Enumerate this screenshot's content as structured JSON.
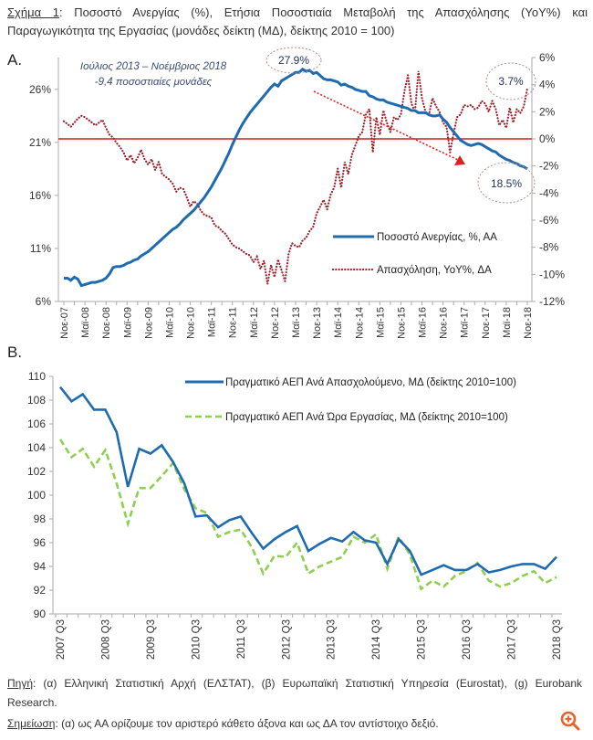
{
  "title": {
    "label": "Σχήμα 1",
    "text": ": Ποσοστό Ανεργίας (%), Ετήσια Ποσοστιαία Μεταβολή της Απασχόλησης (YoY%) και Παραγωγικότητα της Εργασίας (μονάδες δείκτη (ΜΔ), δείκτης 2010 = 100)"
  },
  "section_a": "A.",
  "section_b": "B.",
  "footer": {
    "source_label": "Πηγή",
    "source_text": ": (α) Ελληνική Στατιστική Αρχή (ΕΛΣΤΑΤ), (β) Ευρωπαϊκή Στατιστική Υπηρεσία (Eurostat), (g) Eurobank Research.",
    "note_label": "Σημείωση",
    "note_text": ": (α) ως ΑΑ ορίζουμε τον αριστερό κάθετο άξονα και ως ΔΑ τον αντίστοιχο δεξιό."
  },
  "colors": {
    "unemployment": "#1f6bb0",
    "employment": "#a0202a",
    "zero_line": "#c8201e",
    "productivity_employed": "#1f6bb0",
    "productivity_hour": "#8fcf4f",
    "annotation_ellipse": "#b58b85",
    "zoom_icon": "#e8632b"
  },
  "zoom_icon": "zoom-in-icon",
  "chart_data": [
    {
      "type": "line",
      "left_ylim": [
        6,
        29
      ],
      "right_ylim": [
        -12,
        6
      ],
      "left_ticks": [
        "6%",
        "11%",
        "16%",
        "21%",
        "26%"
      ],
      "left_tick_values": [
        6,
        11,
        16,
        21,
        26
      ],
      "right_ticks": [
        "-12%",
        "-10%",
        "-8%",
        "-6%",
        "-4%",
        "-2%",
        "0%",
        "2%",
        "4%",
        "6%"
      ],
      "right_tick_values": [
        -12,
        -10,
        -8,
        -6,
        -4,
        -2,
        0,
        2,
        4,
        6
      ],
      "x_tick_labels": [
        "Νοε-07",
        "Μαϊ-08",
        "Νοε-08",
        "Μαϊ-09",
        "Νοε-09",
        "Μαϊ-10",
        "Νοε-10",
        "Μαϊ-11",
        "Νοε-11",
        "Μαϊ-12",
        "Νοε-12",
        "Μαϊ-13",
        "Νοε-13",
        "Μαϊ-14",
        "Νοε-14",
        "Μαϊ-15",
        "Νοε-15",
        "Μαϊ-16",
        "Νοε-16",
        "Μαϊ-17",
        "Νοε-17",
        "Μαϊ-18",
        "Νοε-18"
      ],
      "x_range": [
        "Νοε-07",
        "Νοε-18"
      ],
      "frequency": "monthly",
      "legend_position": "bottom-right",
      "annotations": {
        "period": "Ιούλιος 2013 – Νοέμβριος 2018",
        "change": "-9,4 ποσοστιαίες μονάδες",
        "peak": "27.9%",
        "last_unemployment": "18.5%",
        "last_employment": "3.7%"
      },
      "series": [
        {
          "name": "Ποσοστό Ανεργίας, %, ΑΑ",
          "axis": "left",
          "values": [
            8.2,
            8.2,
            8.0,
            8.3,
            8.1,
            7.5,
            7.6,
            7.7,
            7.8,
            7.8,
            7.9,
            8.0,
            8.2,
            8.6,
            9.2,
            9.3,
            9.3,
            9.4,
            9.6,
            9.7,
            9.9,
            10.0,
            10.3,
            10.5,
            10.7,
            11.0,
            11.3,
            11.6,
            11.9,
            12.2,
            12.5,
            12.8,
            13.0,
            13.3,
            13.7,
            14.0,
            14.3,
            14.6,
            15.0,
            15.4,
            15.8,
            16.3,
            16.8,
            17.4,
            18.0,
            18.6,
            19.3,
            20.0,
            20.8,
            21.5,
            22.2,
            22.8,
            23.3,
            23.8,
            24.2,
            24.6,
            25.0,
            25.4,
            25.8,
            26.2,
            26.5,
            26.3,
            26.8,
            27.0,
            27.2,
            27.4,
            27.6,
            27.6,
            27.9,
            27.7,
            27.8,
            27.5,
            27.6,
            27.3,
            27.0,
            26.9,
            26.9,
            26.8,
            26.7,
            26.4,
            26.5,
            26.3,
            26.2,
            26.0,
            25.9,
            25.8,
            25.8,
            25.4,
            25.3,
            25.1,
            25.0,
            25.0,
            24.8,
            24.7,
            24.6,
            24.5,
            24.4,
            24.3,
            24.2,
            24.0,
            24.0,
            23.8,
            23.8,
            23.8,
            23.6,
            23.5,
            23.5,
            23.6,
            23.2,
            22.9,
            22.4,
            22.0,
            21.6,
            21.2,
            21.0,
            20.8,
            20.7,
            20.8,
            20.9,
            20.8,
            20.6,
            20.4,
            20.2,
            20.1,
            19.8,
            19.6,
            19.4,
            19.3,
            19.1,
            19.0,
            18.8,
            18.7,
            18.5
          ]
        },
        {
          "name": "Απασχόληση, YoY%, ΔΑ",
          "axis": "right",
          "values": [
            1.3,
            1.1,
            0.9,
            1.2,
            1.5,
            1.7,
            1.6,
            1.4,
            1.2,
            1.0,
            1.2,
            1.4,
            0.8,
            0.3,
            0.1,
            -0.3,
            -0.6,
            -1.0,
            -1.6,
            -1.2,
            -1.8,
            -1.4,
            -0.8,
            -1.5,
            -1.9,
            -1.5,
            -2.3,
            -1.7,
            -2.6,
            -2.8,
            -3.0,
            -3.3,
            -3.9,
            -3.6,
            -3.7,
            -4.3,
            -5.0,
            -4.6,
            -4.8,
            -5.3,
            -5.6,
            -5.7,
            -5.8,
            -6.4,
            -6.5,
            -6.8,
            -7.0,
            -7.4,
            -7.8,
            -8.0,
            -8.1,
            -8.3,
            -8.5,
            -8.6,
            -9.1,
            -8.7,
            -9.6,
            -9.0,
            -10.7,
            -9.3,
            -10.2,
            -8.9,
            -9.7,
            -10.5,
            -8.5,
            -7.7,
            -7.9,
            -8.0,
            -7.5,
            -7.3,
            -6.8,
            -6.5,
            -5.5,
            -5.0,
            -4.5,
            -5.2,
            -4.1,
            -3.6,
            -2.2,
            -3.6,
            -1.7,
            -2.6,
            -1.2,
            -0.5,
            0.2,
            0.5,
            1.8,
            2.2,
            -1.0,
            1.6,
            0.3,
            2.1,
            1.2,
            0.5,
            1.6,
            1.4,
            1.8,
            3.5,
            4.7,
            2.6,
            2.0,
            5.0,
            3.0,
            2.0,
            1.8,
            3.0,
            2.4,
            2.0,
            1.2,
            0.9,
            -1.0,
            0.4,
            1.6,
            1.8,
            2.5,
            2.4,
            2.5,
            2.2,
            2.3,
            2.8,
            2.6,
            2.0,
            2.8,
            2.2,
            1.0,
            1.4,
            0.8,
            2.3,
            1.2,
            2.2,
            1.9,
            2.4,
            3.7
          ]
        }
      ]
    },
    {
      "type": "line",
      "ylim": [
        90,
        110
      ],
      "y_ticks": [
        "90",
        "92",
        "94",
        "96",
        "98",
        "100",
        "102",
        "104",
        "106",
        "108",
        "110"
      ],
      "y_tick_values": [
        90,
        92,
        94,
        96,
        98,
        100,
        102,
        104,
        106,
        108,
        110
      ],
      "x_tick_labels": [
        "2007 Q3",
        "2008 Q3",
        "2009 Q3",
        "2010 Q3",
        "2011 Q3",
        "2012 Q3",
        "2013 Q3",
        "2014 Q3",
        "2015 Q3",
        "2016 Q3",
        "2017 Q3",
        "2018 Q3"
      ],
      "frequency": "quarterly",
      "legend_position": "top-right",
      "series": [
        {
          "name": "Πραγματικό ΑΕΠ Ανά Απασχολούμενο, ΜΔ (δείκτης 2010=100)",
          "values": [
            109.1,
            107.9,
            108.5,
            107.2,
            107.2,
            105.3,
            100.7,
            103.9,
            103.5,
            104.2,
            102.8,
            101.0,
            98.2,
            98.3,
            97.3,
            97.9,
            98.2,
            96.8,
            95.5,
            96.3,
            96.9,
            97.4,
            95.3,
            95.9,
            96.4,
            96.1,
            96.9,
            96.2,
            96.0,
            94.2,
            96.3,
            95.3,
            93.3,
            93.7,
            94.1,
            93.7,
            93.7,
            94.2,
            93.5,
            93.7,
            94.0,
            94.2,
            94.2,
            93.8,
            94.8
          ]
        },
        {
          "name": "Πραγματικό ΑΕΠ Ανά Ώρα Εργασίας, ΜΔ (δείκτης 2010=100)",
          "values": [
            104.7,
            103.2,
            103.9,
            102.4,
            103.8,
            101.0,
            97.6,
            100.6,
            100.6,
            101.6,
            102.7,
            100.5,
            98.9,
            98.5,
            96.5,
            96.9,
            97.1,
            95.6,
            93.4,
            94.9,
            94.8,
            96.0,
            93.4,
            94.0,
            94.4,
            94.8,
            96.5,
            96.0,
            96.7,
            93.8,
            96.5,
            95.0,
            92.1,
            92.8,
            92.3,
            93.2,
            93.6,
            94.3,
            92.8,
            92.3,
            92.6,
            93.2,
            93.6,
            92.6,
            93.1
          ]
        }
      ]
    }
  ]
}
